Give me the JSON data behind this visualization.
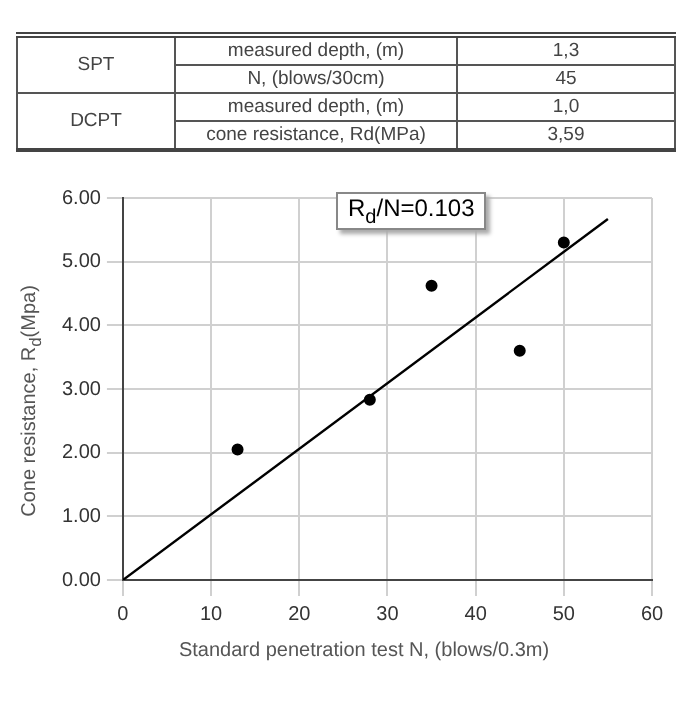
{
  "chart_data": [
    {
      "type": "other",
      "annotations": [
        "SPT",
        "measured depth, (m)",
        "1,3",
        "N, (blows/30cm)",
        "45",
        "DCPT",
        "measured depth, (m)",
        "1,0",
        "cone resistance, Rd(MPa)",
        "3,59"
      ]
    },
    {
      "type": "scatter",
      "xlabel": "Standard penetration test N, (blows/0.3m)",
      "ylabel": "Cone resistance, R$_{d}$(Mpa)",
      "annotations": [
        "R$_{d}$/N=0.103"
      ],
      "xlim": [
        0,
        60
      ],
      "xticks": [
        0,
        10,
        20,
        30,
        40,
        50,
        60
      ],
      "ylim": [
        0,
        6
      ],
      "yticks": [
        {
          "value": 0,
          "label": "0.00"
        },
        {
          "value": 1,
          "label": "1.00"
        },
        {
          "value": 2,
          "label": "2.00"
        },
        {
          "value": 3,
          "label": "3.00"
        },
        {
          "value": 4,
          "label": "4.00"
        },
        {
          "value": 5,
          "label": "5.00"
        },
        {
          "value": 6,
          "label": "6.00"
        }
      ],
      "grid": true,
      "legend": false,
      "marker": "circle",
      "series": [
        {
          "type": "scatter",
          "color": "#000000",
          "x": [
            13,
            28,
            35,
            45,
            50
          ],
          "values": [
            2.05,
            2.83,
            4.62,
            3.6,
            5.3
          ]
        },
        {
          "type": "line",
          "color": "#000000",
          "marker": "none",
          "line_style": "solid",
          "x": [
            0,
            55
          ],
          "values": [
            0,
            5.67
          ]
        }
      ]
    }
  ]
}
